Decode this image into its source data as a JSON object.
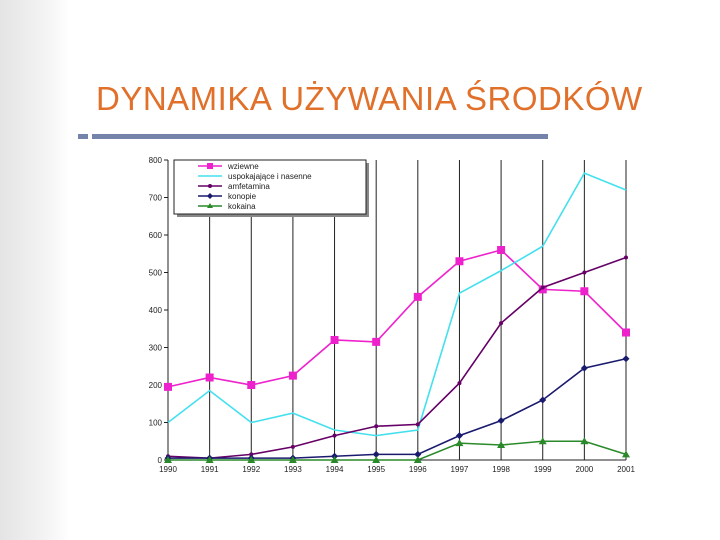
{
  "slide": {
    "title": "DYNAMIKA UŻYWANIA ŚRODKÓW"
  },
  "chart_data": {
    "type": "line",
    "categories": [
      "1990",
      "1991",
      "1992",
      "1993",
      "1994",
      "1995",
      "1996",
      "1997",
      "1998",
      "1999",
      "2000",
      "2001"
    ],
    "ylim": [
      0,
      800
    ],
    "yticks": [
      0,
      100,
      200,
      300,
      400,
      500,
      600,
      700,
      800
    ],
    "ytick_labels": [
      "0",
      "100",
      "200",
      "300",
      "400",
      "500",
      "600",
      "700",
      "800"
    ],
    "grid": "vertical",
    "legend_position": "top-left",
    "series": [
      {
        "name": "wziewne",
        "color": "#ee22cc",
        "marker": "square",
        "values": [
          195,
          220,
          200,
          225,
          320,
          315,
          435,
          530,
          560,
          455,
          450,
          340
        ]
      },
      {
        "name": "uspokajające i nasenne",
        "color": "#44e0ee",
        "marker": "none",
        "values": [
          100,
          185,
          100,
          125,
          80,
          65,
          80,
          445,
          505,
          570,
          765,
          720
        ]
      },
      {
        "name": "amfetamina",
        "color": "#660066",
        "marker": "dot",
        "values": [
          10,
          5,
          15,
          35,
          65,
          90,
          95,
          205,
          365,
          460,
          500,
          540
        ]
      },
      {
        "name": "konopie",
        "color": "#1a1a6e",
        "marker": "diamond",
        "values": [
          5,
          5,
          5,
          5,
          10,
          15,
          15,
          65,
          105,
          160,
          245,
          270
        ]
      },
      {
        "name": "kokaina",
        "color": "#2a8a2a",
        "marker": "triangle",
        "values": [
          0,
          0,
          0,
          0,
          0,
          0,
          0,
          45,
          40,
          50,
          50,
          15
        ]
      }
    ]
  }
}
